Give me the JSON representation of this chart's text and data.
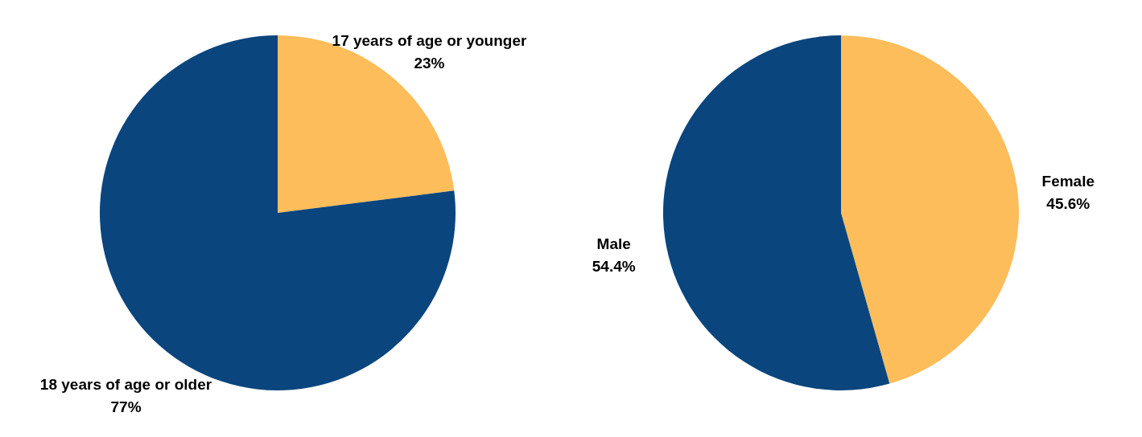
{
  "chart_data": [
    {
      "type": "pie",
      "categories": [
        "17 years of age or younger",
        "18 years of age or older"
      ],
      "values": [
        23,
        77
      ],
      "colors": [
        "#fdbd5a",
        "#0b457d"
      ],
      "value_labels": [
        "23%",
        "77%"
      ]
    },
    {
      "type": "pie",
      "categories": [
        "Female",
        "Male"
      ],
      "values": [
        45.6,
        54.4
      ],
      "colors": [
        "#fdbd5a",
        "#0b457d"
      ],
      "value_labels": [
        "45.6%",
        "54.4%"
      ]
    }
  ]
}
